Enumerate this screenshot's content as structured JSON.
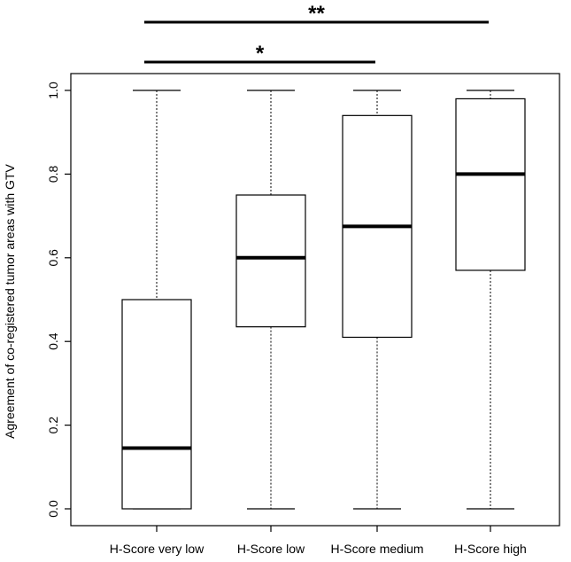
{
  "chart_data": {
    "type": "boxplot",
    "title": "",
    "xlabel": "",
    "ylabel": "Agreement of co-registered tumor areas with GTV",
    "ylim": [
      0,
      1
    ],
    "yticks": [
      "0.0",
      "0.2",
      "0.4",
      "0.6",
      "0.8",
      "1.0"
    ],
    "categories": [
      "H-Score very low",
      "H-Score low",
      "H-Score medium",
      "H-Score high"
    ],
    "boxes": [
      {
        "category": "H-Score very low",
        "min": 0.0,
        "q1": 0.0,
        "median": 0.145,
        "q3": 0.5,
        "max": 1.0
      },
      {
        "category": "H-Score low",
        "min": 0.0,
        "q1": 0.435,
        "median": 0.6,
        "q3": 0.75,
        "max": 1.0
      },
      {
        "category": "H-Score medium",
        "min": 0.0,
        "q1": 0.41,
        "median": 0.675,
        "q3": 0.94,
        "max": 1.0
      },
      {
        "category": "H-Score high",
        "min": 0.0,
        "q1": 0.57,
        "median": 0.8,
        "q3": 0.98,
        "max": 1.0
      }
    ],
    "significance": [
      {
        "from": "H-Score very low",
        "to": "H-Score medium",
        "label": "*"
      },
      {
        "from": "H-Score very low",
        "to": "H-Score high",
        "label": "**"
      }
    ]
  }
}
